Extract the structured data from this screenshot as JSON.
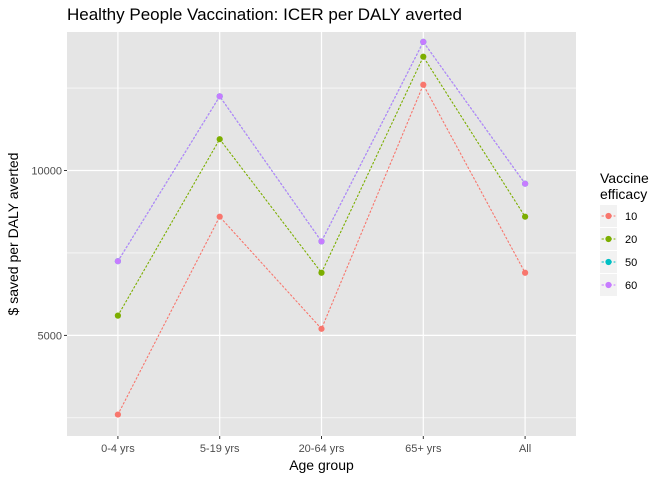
{
  "chart_data": {
    "type": "line",
    "title": "Healthy People Vaccination: ICER per DALY averted",
    "xlabel": "Age group",
    "ylabel": "$ saved per DALY averted",
    "categories": [
      "0-4 yrs",
      "5-19 yrs",
      "20-64 yrs",
      "65+ yrs",
      "All"
    ],
    "yticks": [
      5000,
      10000
    ],
    "ytick_labels": [
      "5000",
      "10000"
    ],
    "ylim": [
      1950,
      14200
    ],
    "grid": true,
    "line_style": "dotted",
    "legend": {
      "title_lines": [
        "Vaccine",
        "efficacy"
      ],
      "position": "right"
    },
    "series": [
      {
        "name": "10",
        "color": "#F8766D",
        "values": [
          2600,
          8600,
          5200,
          12600,
          6900
        ]
      },
      {
        "name": "20",
        "color": "#7CAE00",
        "values": [
          5600,
          10950,
          6900,
          13450,
          8600
        ]
      },
      {
        "name": "50",
        "color": "#00BFC4",
        "values": [
          7250,
          12250,
          7850,
          13900,
          9600
        ]
      },
      {
        "name": "60",
        "color": "#C77CFF",
        "values": [
          7250,
          12250,
          7850,
          13900,
          9600
        ]
      }
    ],
    "colors": {
      "panel_background": "#E5E5E5",
      "grid_line": "#FFFFFF",
      "legend_key_background": "#F2F2F2",
      "tick_text": "#4D4D4D"
    }
  }
}
